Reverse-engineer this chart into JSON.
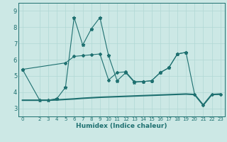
{
  "xlabel": "Humidex (Indice chaleur)",
  "bg_color": "#cce8e5",
  "grid_color": "#b0d8d4",
  "line_color": "#1e7070",
  "xlim": [
    -0.5,
    23.5
  ],
  "ylim": [
    2.5,
    9.5
  ],
  "yticks": [
    3,
    4,
    5,
    6,
    7,
    8,
    9
  ],
  "xticks": [
    0,
    2,
    3,
    4,
    5,
    6,
    7,
    8,
    9,
    10,
    11,
    12,
    13,
    14,
    15,
    16,
    17,
    18,
    19,
    20,
    21,
    22,
    23
  ],
  "line_spiky_x": [
    0,
    2,
    3,
    4,
    5,
    6,
    7,
    8,
    9,
    10,
    11,
    12,
    13,
    14,
    15,
    16,
    17,
    18,
    19
  ],
  "line_spiky_y": [
    5.4,
    3.5,
    3.5,
    3.6,
    4.3,
    8.6,
    6.9,
    7.9,
    8.6,
    6.25,
    4.7,
    5.2,
    4.6,
    4.65,
    4.7,
    5.2,
    5.5,
    6.35,
    6.45
  ],
  "line_mid_x": [
    0,
    5,
    6,
    7,
    8,
    9,
    10,
    11,
    12,
    13,
    14,
    15,
    16,
    17,
    18,
    19,
    20,
    21,
    22,
    23
  ],
  "line_mid_y": [
    5.4,
    5.8,
    6.2,
    6.25,
    6.3,
    6.35,
    4.75,
    5.2,
    5.25,
    4.65,
    4.65,
    4.7,
    5.2,
    5.5,
    6.35,
    6.45,
    3.85,
    3.2,
    3.85,
    3.85
  ],
  "line_flat_x": [
    0,
    2,
    3,
    4,
    5,
    6,
    7,
    8,
    9,
    10,
    11,
    12,
    13,
    14,
    15,
    16,
    17,
    18,
    19,
    20,
    21,
    22,
    23
  ],
  "line_flat_y": [
    3.5,
    3.5,
    3.5,
    3.52,
    3.55,
    3.58,
    3.62,
    3.65,
    3.68,
    3.7,
    3.72,
    3.74,
    3.76,
    3.78,
    3.8,
    3.82,
    3.84,
    3.86,
    3.88,
    3.85,
    3.2,
    3.85,
    3.88
  ]
}
